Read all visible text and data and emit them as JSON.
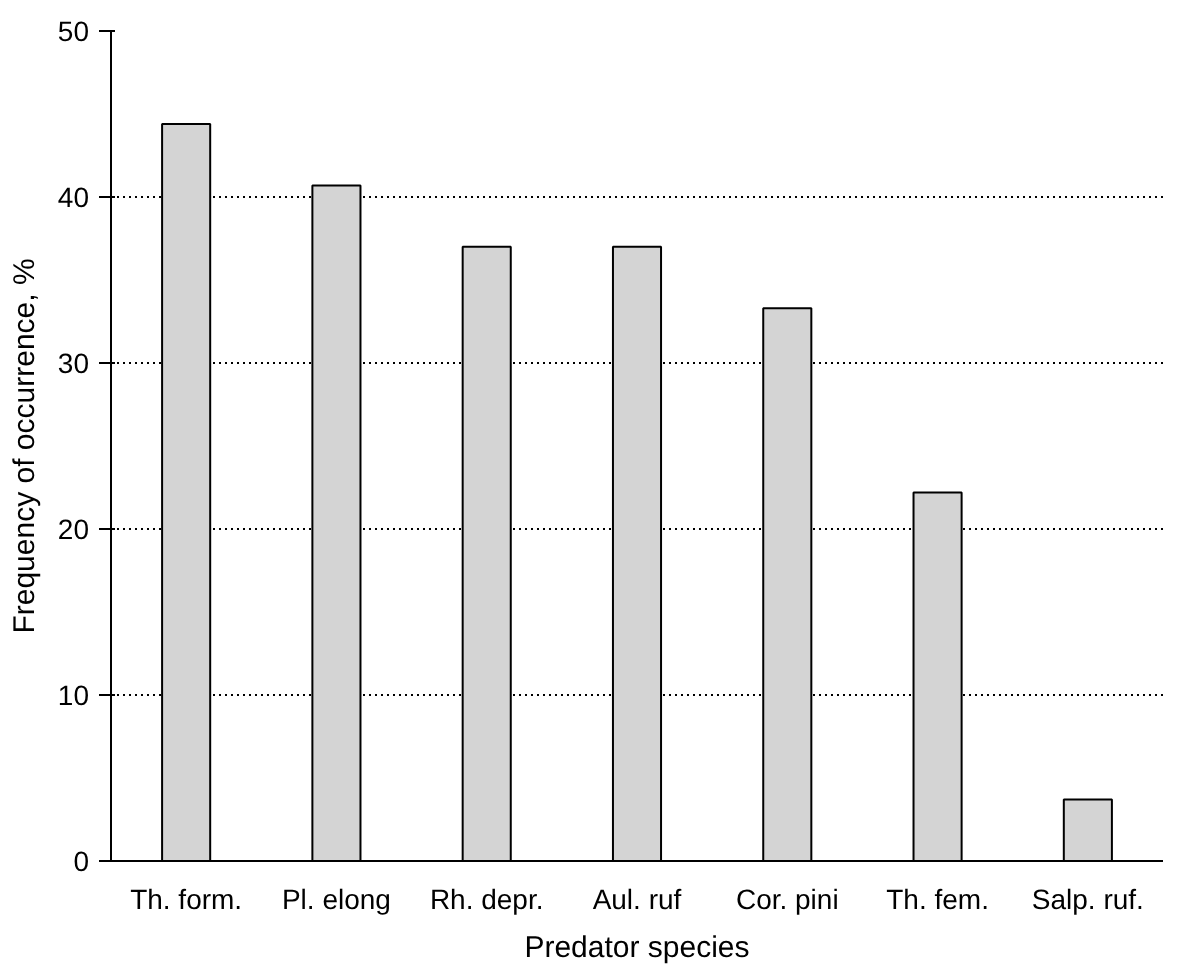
{
  "chart_data": {
    "type": "bar",
    "xlabel": "Predator species",
    "ylabel": "Frequency of occurrence, %",
    "categories": [
      "Th. form.",
      "Pl. elong",
      "Rh. depr.",
      "Aul. ruf",
      "Cor. pini",
      "Th. fem.",
      "Salp. ruf."
    ],
    "values": [
      44.4,
      40.7,
      37.0,
      37.0,
      33.3,
      22.2,
      3.7
    ],
    "color": "#d4d4d4",
    "ylim": [
      0,
      50
    ],
    "yticks": [
      0,
      10,
      20,
      30,
      40,
      50
    ],
    "grid": "y"
  }
}
